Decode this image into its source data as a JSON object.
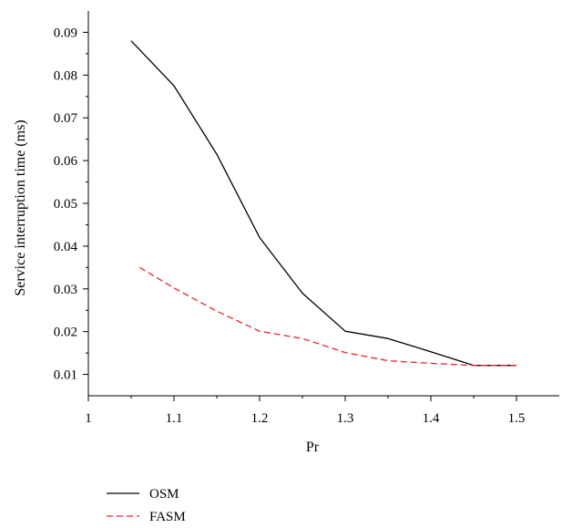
{
  "chart_data": {
    "type": "line",
    "xlabel": "Pr",
    "ylabel": "Service interruption time (ms)",
    "xlim": [
      1.0,
      1.55
    ],
    "ylim": [
      0.005,
      0.095
    ],
    "xticks": [
      1,
      1.1,
      1.2,
      1.3,
      1.4,
      1.5
    ],
    "xtick_labels": [
      "1",
      "1.1",
      "1.2",
      "1.3",
      "1.4",
      "1.5"
    ],
    "yticks": [
      0.01,
      0.02,
      0.03,
      0.04,
      0.05,
      0.06,
      0.07,
      0.08,
      0.09
    ],
    "ytick_labels": [
      "0.01",
      "0.02",
      "0.03",
      "0.04",
      "0.05",
      "0.06",
      "0.07",
      "0.08",
      "0.09"
    ],
    "grid": false,
    "legend_position": "bottom-left, below plot",
    "series": [
      {
        "name": "OSM",
        "color": "#000000",
        "style": "solid",
        "x": [
          1.05,
          1.1,
          1.15,
          1.2,
          1.25,
          1.3,
          1.35,
          1.4,
          1.45,
          1.5
        ],
        "y": [
          0.088,
          0.0775,
          0.0615,
          0.042,
          0.029,
          0.0201,
          0.0184,
          0.0153,
          0.0121,
          0.0121
        ]
      },
      {
        "name": "FASM",
        "color": "#e8262d",
        "style": "dashed",
        "x": [
          1.06,
          1.1,
          1.15,
          1.2,
          1.25,
          1.3,
          1.35,
          1.4,
          1.45,
          1.5
        ],
        "y": [
          0.035,
          0.0302,
          0.0248,
          0.0201,
          0.0184,
          0.0151,
          0.0132,
          0.0126,
          0.0121,
          0.0121
        ]
      }
    ]
  }
}
